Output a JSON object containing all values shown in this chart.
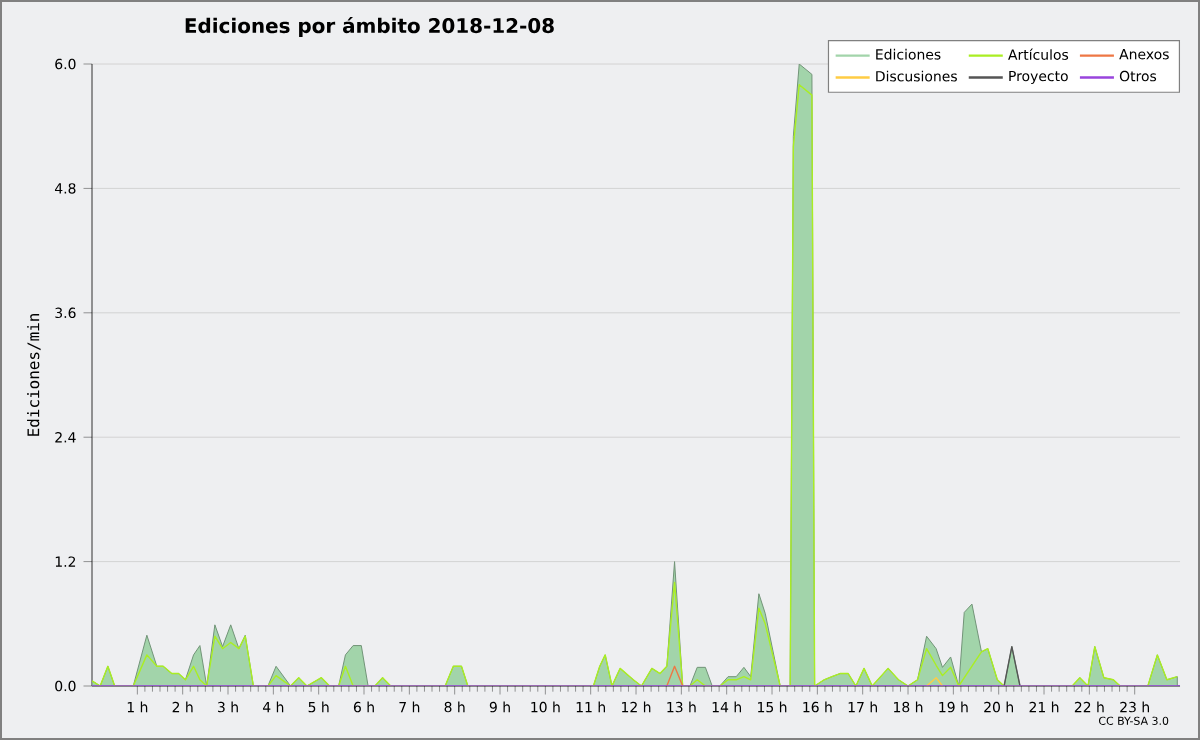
{
  "chart_data": {
    "type": "area",
    "title": "Ediciones por ámbito  2018-12-08",
    "ylabel": "Ediciones/min",
    "annotations": [
      "CC BY-SA 3.0"
    ],
    "xlim": [
      0,
      24
    ],
    "ylim": [
      0,
      6
    ],
    "xticks": [
      {
        "value": 1,
        "label": "1 h"
      },
      {
        "value": 2,
        "label": "2 h"
      },
      {
        "value": 3,
        "label": "3 h"
      },
      {
        "value": 4,
        "label": "4 h"
      },
      {
        "value": 5,
        "label": "5 h"
      },
      {
        "value": 6,
        "label": "6 h"
      },
      {
        "value": 7,
        "label": "7 h"
      },
      {
        "value": 8,
        "label": "8 h"
      },
      {
        "value": 9,
        "label": "9 h"
      },
      {
        "value": 10,
        "label": "10 h"
      },
      {
        "value": 11,
        "label": "11 h"
      },
      {
        "value": 12,
        "label": "12 h"
      },
      {
        "value": 13,
        "label": "13 h"
      },
      {
        "value": 14,
        "label": "14 h"
      },
      {
        "value": 15,
        "label": "15 h"
      },
      {
        "value": 16,
        "label": "16 h"
      },
      {
        "value": 17,
        "label": "17 h"
      },
      {
        "value": 18,
        "label": "18 h"
      },
      {
        "value": 19,
        "label": "19 h"
      },
      {
        "value": 20,
        "label": "20 h"
      },
      {
        "value": 21,
        "label": "21 h"
      },
      {
        "value": 22,
        "label": "22 h"
      },
      {
        "value": 23,
        "label": "23 h"
      }
    ],
    "yticks": [
      {
        "value": 0,
        "label": "0.0"
      },
      1.2,
      2.4,
      3.6,
      4.8,
      {
        "value": 6,
        "label": "6.0"
      }
    ],
    "grid": "y",
    "legend": "top right",
    "series": [
      {
        "name": "Ediciones",
        "color": "#a2d4aa",
        "x": [
          0,
          0.18,
          0.35,
          0.5,
          0.91,
          1.21,
          1.43,
          1.57,
          1.76,
          1.91,
          2.06,
          2.24,
          2.38,
          2.53,
          2.71,
          2.88,
          3.06,
          3.24,
          3.38,
          3.56,
          3.88,
          4.06,
          4.38,
          4.56,
          4.74,
          5.06,
          5.24,
          5.44,
          5.59,
          5.76,
          5.94,
          6.09,
          6.24,
          6.41,
          6.59,
          7.79,
          7.97,
          8.15,
          8.29,
          11.06,
          11.2,
          11.32,
          11.47,
          11.65,
          11.94,
          12.12,
          12.35,
          12.53,
          12.68,
          12.85,
          13.03,
          13.19,
          13.35,
          13.53,
          13.68,
          13.85,
          14.03,
          14.21,
          14.38,
          14.53,
          14.71,
          14.85,
          15.18,
          15.4,
          15.47,
          15.6,
          15.88,
          15.94,
          16.15,
          16.32,
          16.5,
          16.68,
          16.85,
          17.03,
          17.21,
          17.56,
          17.79,
          18,
          18.21,
          18.41,
          18.62,
          18.76,
          18.94,
          19.12,
          19.24,
          19.41,
          19.62,
          19.76,
          19.97,
          20.12,
          20.29,
          20.47,
          21.62,
          21.79,
          21.97,
          22.12,
          22.32,
          22.53,
          22.68,
          23.29,
          23.5,
          23.71,
          23.94
        ],
        "values": [
          0.05,
          0,
          0.19,
          0,
          0,
          0.49,
          0.19,
          0.19,
          0.12,
          0.12,
          0.06,
          0.3,
          0.39,
          0,
          0.59,
          0.38,
          0.59,
          0.36,
          0.49,
          0,
          0,
          0.19,
          0,
          0.08,
          0,
          0.08,
          0,
          0,
          0.3,
          0.39,
          0.39,
          0,
          0,
          0.08,
          0,
          0,
          0.19,
          0.19,
          0,
          0,
          0.19,
          0.3,
          0,
          0.17,
          0.06,
          0,
          0.17,
          0.12,
          0.19,
          1.2,
          0,
          0,
          0.18,
          0.18,
          0,
          0,
          0.09,
          0.09,
          0.18,
          0.09,
          0.89,
          0.7,
          0,
          0,
          5.3,
          6.0,
          5.9,
          0,
          0.06,
          0.09,
          0.12,
          0.12,
          0,
          0.17,
          0,
          0.17,
          0.06,
          0,
          0.06,
          0.48,
          0.36,
          0.18,
          0.28,
          0,
          0.71,
          0.79,
          0.33,
          0.36,
          0.06,
          0,
          0.38,
          0,
          0,
          0.08,
          0,
          0.38,
          0.08,
          0.06,
          0,
          0,
          0.3,
          0.06,
          0.09
        ]
      },
      {
        "name": "Artículos",
        "color": "#aaee22",
        "type": "line",
        "x": [
          0,
          0.18,
          0.35,
          0.5,
          0.91,
          1.21,
          1.43,
          1.57,
          1.76,
          1.91,
          2.06,
          2.24,
          2.38,
          2.53,
          2.71,
          2.88,
          3.06,
          3.24,
          3.38,
          3.56,
          3.88,
          4.06,
          4.38,
          4.56,
          4.74,
          5.06,
          5.24,
          5.44,
          5.59,
          5.76,
          6.24,
          6.41,
          6.59,
          7.79,
          7.97,
          8.15,
          8.29,
          11.06,
          11.2,
          11.32,
          11.47,
          11.65,
          11.94,
          12.12,
          12.35,
          12.53,
          12.68,
          12.85,
          13.03,
          13.19,
          13.35,
          13.53,
          13.68,
          13.85,
          14.03,
          14.21,
          14.38,
          14.53,
          14.71,
          14.85,
          15.18,
          15.4,
          15.47,
          15.6,
          15.88,
          15.94,
          16.15,
          16.32,
          16.5,
          16.68,
          16.85,
          17.03,
          17.21,
          17.56,
          17.79,
          18,
          18.21,
          18.41,
          18.62,
          18.76,
          18.94,
          19.12,
          19.62,
          19.76,
          19.97,
          20.12,
          21.62,
          21.79,
          21.97,
          22.12,
          22.32,
          22.53,
          22.68,
          23.29,
          23.5,
          23.71,
          23.94
        ],
        "values": [
          0.05,
          0,
          0.19,
          0,
          0,
          0.3,
          0.19,
          0.19,
          0.12,
          0.12,
          0.06,
          0.19,
          0.06,
          0,
          0.48,
          0.36,
          0.42,
          0.36,
          0.48,
          0,
          0,
          0.1,
          0,
          0.08,
          0,
          0.08,
          0,
          0,
          0.19,
          0,
          0,
          0.08,
          0,
          0,
          0.19,
          0.19,
          0,
          0,
          0.19,
          0.3,
          0,
          0.17,
          0.06,
          0,
          0.17,
          0.12,
          0.19,
          1.0,
          0,
          0,
          0.06,
          0,
          0,
          0,
          0.06,
          0.06,
          0.09,
          0.06,
          0.75,
          0.6,
          0,
          0,
          5.2,
          5.8,
          5.7,
          0,
          0.06,
          0.09,
          0.12,
          0.12,
          0,
          0.17,
          0,
          0.17,
          0.06,
          0,
          0.06,
          0.36,
          0.2,
          0.1,
          0.18,
          0,
          0.33,
          0.36,
          0.06,
          0,
          0,
          0.08,
          0,
          0.38,
          0.08,
          0.06,
          0,
          0,
          0.3,
          0.06,
          0.09
        ]
      },
      {
        "name": "Anexos",
        "color": "#ee7744",
        "type": "line",
        "x": [
          12.68,
          12.85,
          13.03
        ],
        "values": [
          0,
          0.19,
          0
        ]
      },
      {
        "name": "Discusiones",
        "color": "#ffcc44",
        "type": "line",
        "x": [
          18.41,
          18.62,
          18.76
        ],
        "values": [
          0,
          0.08,
          0
        ]
      },
      {
        "name": "Proyecto",
        "color": "#555555",
        "type": "line",
        "x": [
          20.12,
          20.29,
          20.47
        ],
        "values": [
          0,
          0.38,
          0
        ]
      },
      {
        "name": "Otros",
        "color": "#9944dd",
        "type": "line",
        "x": [
          0,
          24
        ],
        "values": [
          0,
          0
        ]
      }
    ]
  }
}
